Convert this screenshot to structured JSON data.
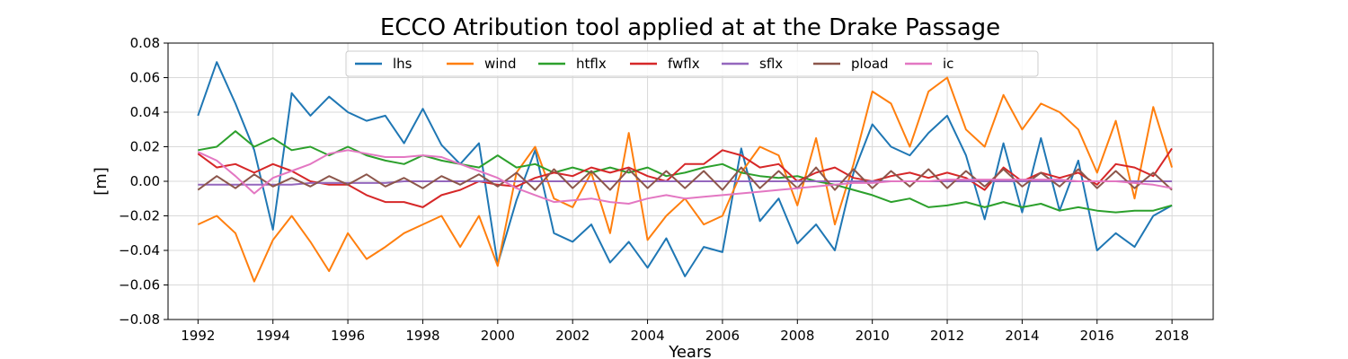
{
  "chart_data": {
    "type": "line",
    "title": "ECCO Atribution tool applied at at the Drake Passage",
    "xlabel": "Years",
    "ylabel": "[m]",
    "xlim": [
      1991.2,
      2019.1
    ],
    "ylim": [
      -0.08,
      0.08
    ],
    "xticks": [
      1992,
      1994,
      1996,
      1998,
      2000,
      2002,
      2004,
      2006,
      2008,
      2010,
      2012,
      2014,
      2016,
      2018
    ],
    "xtick_labels": [
      "1992",
      "1994",
      "1996",
      "1998",
      "2000",
      "2002",
      "2004",
      "2006",
      "2008",
      "2010",
      "2012",
      "2014",
      "2016",
      "2018"
    ],
    "yticks": [
      -0.08,
      -0.06,
      -0.04,
      -0.02,
      0.0,
      0.02,
      0.04,
      0.06,
      0.08
    ],
    "ytick_labels": [
      "−0.08",
      "−0.06",
      "−0.04",
      "−0.02",
      "0.00",
      "0.02",
      "0.04",
      "0.06",
      "0.08"
    ],
    "grid": true,
    "legend": "top-center",
    "x": [
      1992.0,
      1992.5,
      1993.0,
      1993.5,
      1994.0,
      1994.5,
      1995.0,
      1995.5,
      1996.0,
      1996.5,
      1997.0,
      1997.5,
      1998.0,
      1998.5,
      1999.0,
      1999.5,
      2000.0,
      2000.5,
      2001.0,
      2001.5,
      2002.0,
      2002.5,
      2003.0,
      2003.5,
      2004.0,
      2004.5,
      2005.0,
      2005.5,
      2006.0,
      2006.5,
      2007.0,
      2007.5,
      2008.0,
      2008.5,
      2009.0,
      2009.5,
      2010.0,
      2010.5,
      2011.0,
      2011.5,
      2012.0,
      2012.5,
      2013.0,
      2013.5,
      2014.0,
      2014.5,
      2015.0,
      2015.5,
      2016.0,
      2016.5,
      2017.0,
      2017.5,
      2018.0
    ],
    "series": [
      {
        "name": "lhs",
        "color": "#1f77b4",
        "values": [
          0.038,
          0.069,
          0.045,
          0.018,
          -0.028,
          0.051,
          0.038,
          0.049,
          0.04,
          0.035,
          0.038,
          0.022,
          0.042,
          0.021,
          0.01,
          0.022,
          -0.048,
          -0.011,
          0.018,
          -0.03,
          -0.035,
          -0.025,
          -0.047,
          -0.035,
          -0.05,
          -0.033,
          -0.055,
          -0.038,
          -0.041,
          0.019,
          -0.023,
          -0.01,
          -0.036,
          -0.025,
          -0.04,
          0.005,
          0.033,
          0.02,
          0.015,
          0.028,
          0.038,
          0.015,
          -0.022,
          0.022,
          -0.018,
          0.025,
          -0.017,
          0.012,
          -0.04,
          -0.03,
          -0.038,
          -0.02,
          -0.014
        ]
      },
      {
        "name": "wind",
        "color": "#ff7f0e",
        "values": [
          -0.025,
          -0.02,
          -0.03,
          -0.058,
          -0.034,
          -0.02,
          -0.035,
          -0.052,
          -0.03,
          -0.045,
          -0.038,
          -0.03,
          -0.025,
          -0.02,
          -0.038,
          -0.02,
          -0.049,
          0.005,
          0.02,
          -0.01,
          -0.015,
          0.005,
          -0.03,
          0.028,
          -0.034,
          -0.02,
          -0.01,
          -0.025,
          -0.02,
          0.005,
          0.02,
          0.015,
          -0.014,
          0.025,
          -0.025,
          0.01,
          0.052,
          0.045,
          0.02,
          0.052,
          0.06,
          0.03,
          0.02,
          0.05,
          0.03,
          0.045,
          0.04,
          0.03,
          0.005,
          0.035,
          -0.01,
          0.043,
          0.008
        ]
      },
      {
        "name": "htflx",
        "color": "#2ca02c",
        "values": [
          0.018,
          0.02,
          0.029,
          0.02,
          0.025,
          0.018,
          0.02,
          0.015,
          0.02,
          0.015,
          0.012,
          0.01,
          0.015,
          0.012,
          0.01,
          0.008,
          0.015,
          0.008,
          0.01,
          0.005,
          0.008,
          0.005,
          0.008,
          0.005,
          0.008,
          0.003,
          0.005,
          0.008,
          0.01,
          0.005,
          0.003,
          0.002,
          0.003,
          0.0,
          -0.002,
          -0.005,
          -0.008,
          -0.012,
          -0.01,
          -0.015,
          -0.014,
          -0.012,
          -0.015,
          -0.012,
          -0.015,
          -0.013,
          -0.017,
          -0.015,
          -0.017,
          -0.018,
          -0.017,
          -0.017,
          -0.014
        ]
      },
      {
        "name": "fwflx",
        "color": "#d62728",
        "values": [
          0.016,
          0.008,
          0.01,
          0.005,
          0.01,
          0.006,
          0.0,
          -0.002,
          -0.002,
          -0.008,
          -0.012,
          -0.012,
          -0.015,
          -0.008,
          -0.005,
          0.0,
          -0.002,
          -0.003,
          0.002,
          0.005,
          0.003,
          0.008,
          0.005,
          0.008,
          0.003,
          0.0,
          0.01,
          0.01,
          0.018,
          0.015,
          0.008,
          0.01,
          0.0,
          0.005,
          0.008,
          0.002,
          0.0,
          0.003,
          0.005,
          0.002,
          0.005,
          0.002,
          -0.005,
          0.008,
          0.0,
          0.005,
          0.002,
          0.005,
          -0.002,
          0.01,
          0.008,
          0.003,
          0.019
        ]
      },
      {
        "name": "sflx",
        "color": "#9467bd",
        "values": [
          -0.002,
          -0.002,
          -0.002,
          -0.002,
          -0.002,
          -0.002,
          -0.001,
          -0.001,
          -0.001,
          -0.001,
          -0.001,
          0.0,
          0.0,
          0.0,
          0.0,
          0.0,
          0.0,
          0.0,
          0.0,
          0.0,
          0.0,
          0.0,
          0.0,
          0.0,
          0.0,
          0.0,
          0.0,
          0.0,
          0.0,
          0.0,
          0.0,
          0.0,
          0.0,
          0.0,
          0.0,
          0.0,
          0.0,
          0.0,
          0.0,
          0.0,
          0.0,
          0.0,
          0.0,
          0.0,
          0.0,
          0.0,
          0.0,
          0.0,
          0.0,
          0.0,
          0.0,
          0.0,
          0.0
        ]
      },
      {
        "name": "pload",
        "color": "#8c564b",
        "values": [
          -0.005,
          0.003,
          -0.004,
          0.004,
          -0.003,
          0.002,
          -0.003,
          0.003,
          -0.002,
          0.004,
          -0.003,
          0.002,
          -0.004,
          0.003,
          -0.002,
          0.004,
          -0.003,
          0.005,
          -0.005,
          0.007,
          -0.004,
          0.006,
          -0.005,
          0.007,
          -0.004,
          0.006,
          -0.004,
          0.006,
          -0.005,
          0.008,
          -0.004,
          0.006,
          -0.004,
          0.008,
          -0.005,
          0.007,
          -0.004,
          0.006,
          -0.003,
          0.007,
          -0.004,
          0.006,
          -0.003,
          0.007,
          -0.003,
          0.005,
          -0.003,
          0.007,
          -0.004,
          0.006,
          -0.004,
          0.005,
          -0.005
        ]
      },
      {
        "name": "ic",
        "color": "#e377c2",
        "values": [
          0.017,
          0.012,
          0.003,
          -0.007,
          0.002,
          0.006,
          0.01,
          0.016,
          0.018,
          0.016,
          0.014,
          0.014,
          0.015,
          0.014,
          0.01,
          0.006,
          0.002,
          -0.004,
          -0.008,
          -0.012,
          -0.011,
          -0.01,
          -0.012,
          -0.013,
          -0.01,
          -0.008,
          -0.01,
          -0.009,
          -0.008,
          -0.007,
          -0.006,
          -0.005,
          -0.004,
          -0.003,
          -0.002,
          -0.001,
          -0.001,
          0.0,
          0.0,
          0.0,
          0.001,
          0.001,
          0.001,
          0.001,
          0.001,
          0.001,
          0.001,
          0.0,
          0.0,
          0.0,
          -0.001,
          -0.002,
          -0.004
        ]
      }
    ]
  }
}
